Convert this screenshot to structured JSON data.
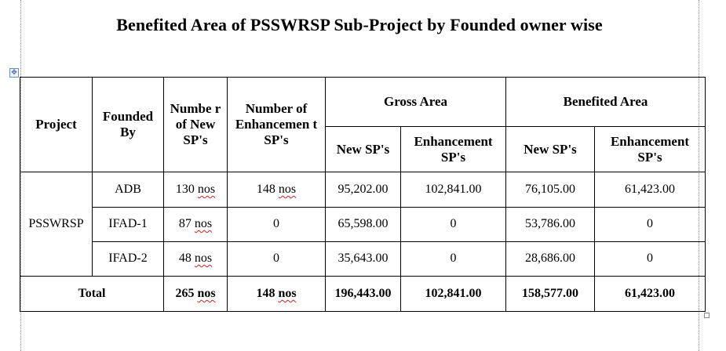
{
  "document": {
    "title": "Benefited Area of PSSWRSP Sub-Project by Founded owner wise"
  },
  "table": {
    "headers": {
      "project": "Project",
      "founded_by": "Founded By",
      "number_new": "Numbe r of New SP's",
      "number_enh": "Number of Enhancemen t SP's",
      "gross_area": "Gross Area",
      "benefited_area": "Benefited Area",
      "gross_new": "New SP's",
      "gross_enh": "Enhancement SP's",
      "ben_new": "New  SP's",
      "ben_enh": "Enhancement SP's"
    },
    "project_name": "PSSWRSP",
    "rows": [
      {
        "founded_by": "ADB",
        "num_new": "130",
        "num_enh": "148",
        "num_enh_unit": "nos",
        "gross_new": "95,202.00",
        "gross_enh": "102,841.00",
        "ben_new": "76,105.00",
        "ben_enh": "61,423.00"
      },
      {
        "founded_by": "IFAD-1",
        "num_new": "87",
        "num_enh": "0",
        "num_enh_unit": "",
        "gross_new": "65,598.00",
        "gross_enh": "0",
        "ben_new": "53,786.00",
        "ben_enh": "0"
      },
      {
        "founded_by": "IFAD-2",
        "num_new": "48",
        "num_enh": "0",
        "num_enh_unit": "",
        "gross_new": "35,643.00",
        "gross_enh": "0",
        "ben_new": "28,686.00",
        "ben_enh": "0"
      }
    ],
    "unit": "nos",
    "total": {
      "label": "Total",
      "num_new": "265",
      "num_enh": "148",
      "gross_new": "196,443.00",
      "gross_enh": "102,841.00",
      "ben_new": "158,577.00",
      "ben_enh": "61,423.00"
    }
  }
}
